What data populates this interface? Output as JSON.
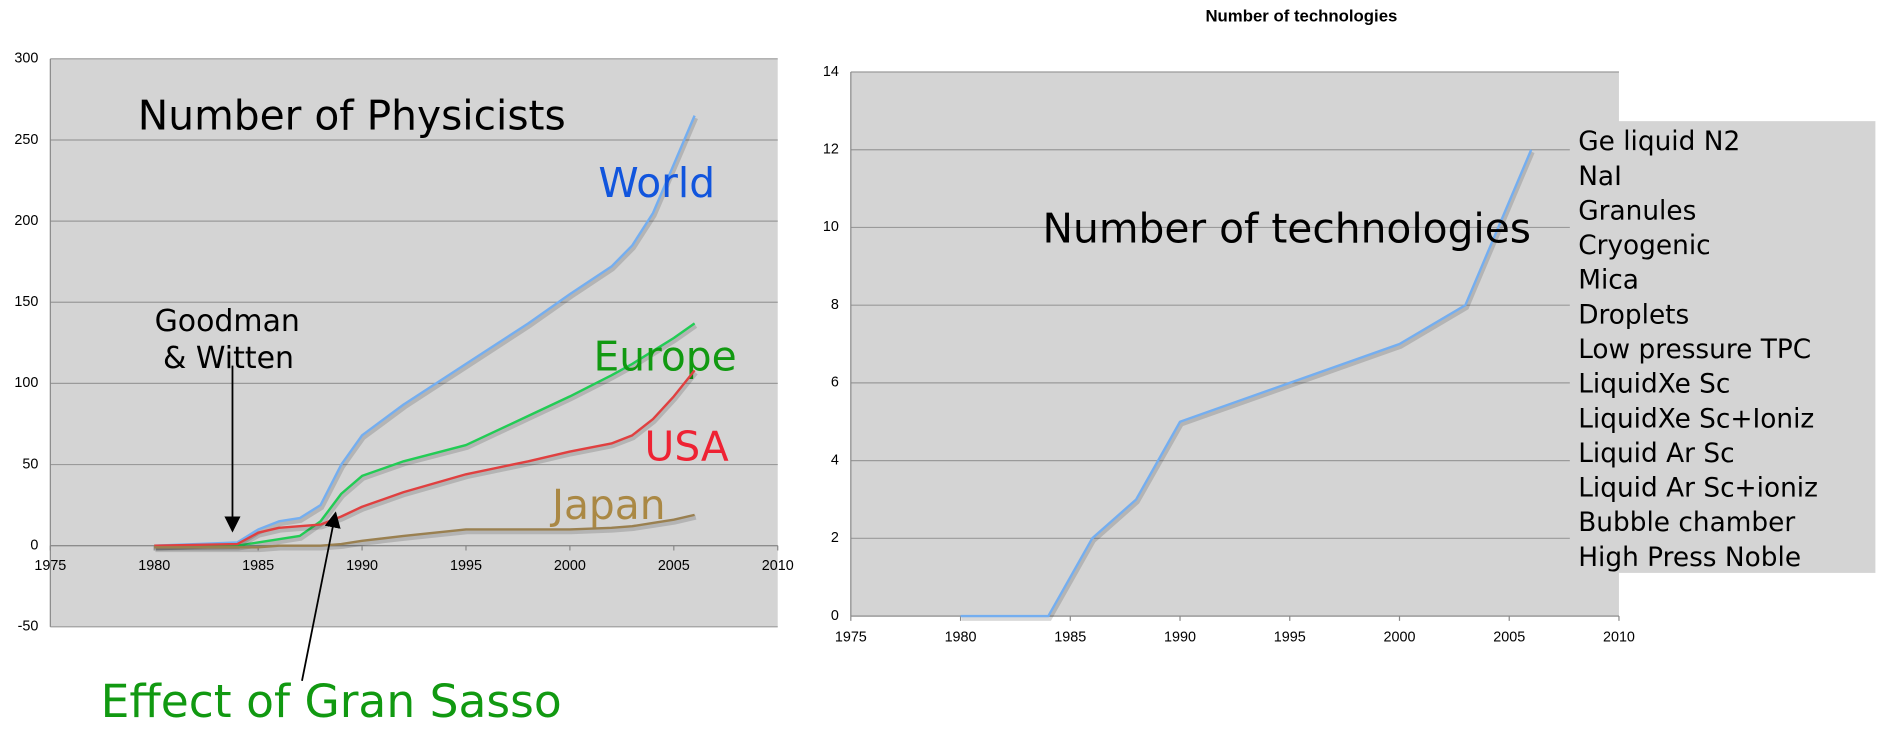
{
  "chart_data": [
    {
      "type": "line",
      "title": "Number of Physicists",
      "x": [
        1980,
        1984,
        1985,
        1986,
        1987,
        1988,
        1989,
        1990,
        1992,
        1995,
        1998,
        2000,
        2002,
        2003,
        2004,
        2005,
        2006
      ],
      "series": [
        {
          "name": "World",
          "color": "#74aef0",
          "label_color": "#1155dd",
          "values": [
            0,
            2,
            10,
            15,
            17,
            25,
            50,
            68,
            87,
            112,
            137,
            155,
            172,
            185,
            205,
            235,
            265
          ]
        },
        {
          "name": "Europe",
          "color": "#22cc55",
          "label_color": "#119911",
          "values": [
            0,
            0,
            2,
            4,
            6,
            15,
            32,
            43,
            52,
            62,
            80,
            92,
            105,
            112,
            120,
            128,
            137
          ]
        },
        {
          "name": "USA",
          "color": "#e04040",
          "label_color": "#ee2233",
          "values": [
            0,
            1,
            8,
            11,
            12,
            13,
            18,
            24,
            33,
            44,
            52,
            58,
            63,
            68,
            78,
            92,
            108
          ]
        },
        {
          "name": "Japan",
          "color": "#9a8050",
          "label_color": "#aa8844",
          "values": [
            -1,
            -1,
            -1,
            0,
            0,
            0,
            1,
            3,
            6,
            10,
            10,
            10,
            11,
            12,
            14,
            16,
            19
          ]
        }
      ],
      "annotations": [
        "Goodman",
        "& Witten",
        "Effect of Gran Sasso"
      ],
      "xlim": [
        1975,
        2010
      ],
      "xticks": [
        1975,
        1980,
        1985,
        1990,
        1995,
        2000,
        2005,
        2010
      ],
      "ylim": [
        -50,
        300
      ],
      "yticks": [
        -50,
        0,
        50,
        100,
        150,
        200,
        250,
        300
      ],
      "grid": true
    },
    {
      "type": "line",
      "title": "Number of technologies",
      "annotation": "Number of technologies",
      "x": [
        1980,
        1984,
        1986,
        1988,
        1990,
        1995,
        2000,
        2003,
        2006
      ],
      "series": [
        {
          "color": "#74aef0",
          "values": [
            0,
            0,
            2,
            3,
            5,
            6,
            7,
            8,
            12
          ]
        }
      ],
      "technologies": [
        "Ge liquid N2",
        "NaI",
        "Granules",
        "Cryogenic",
        "Mica",
        "Droplets",
        "Low pressure TPC",
        "LiquidXe Sc",
        "LiquidXe Sc+Ioniz",
        "Liquid Ar Sc",
        "Liquid Ar Sc+ioniz",
        "Bubble chamber",
        "High Press Noble"
      ],
      "xlim": [
        1975,
        2010
      ],
      "xticks": [
        1975,
        1980,
        1985,
        1990,
        1995,
        2000,
        2005,
        2010
      ],
      "ylim": [
        0,
        14
      ],
      "yticks": [
        0,
        2,
        4,
        6,
        8,
        10,
        12,
        14
      ],
      "grid": true
    }
  ]
}
